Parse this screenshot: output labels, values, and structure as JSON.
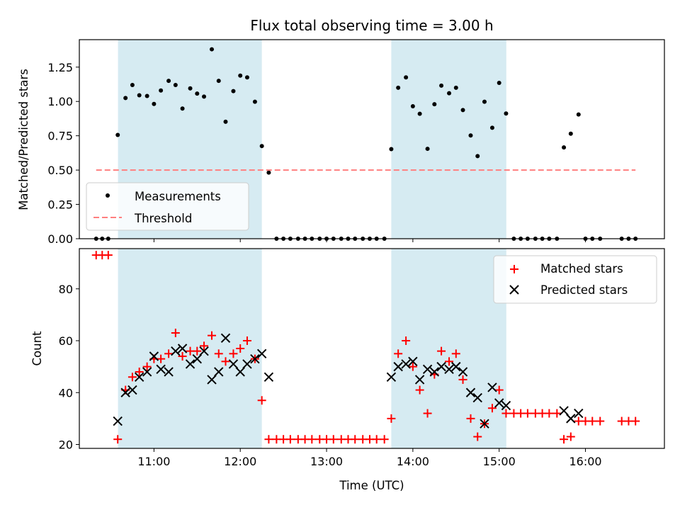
{
  "chart_data": [
    {
      "type": "scatter",
      "title": "Flux total observing time = 3.00 h",
      "xlabel": "",
      "ylabel": "Matched/Predicted stars",
      "xlim_hours": [
        10.135,
        16.915
      ],
      "ylim": [
        0,
        1.45
      ],
      "yticks": [
        "0.00",
        "0.25",
        "0.50",
        "0.75",
        "1.00",
        "1.25"
      ],
      "ytick_values": [
        0,
        0.25,
        0.5,
        0.75,
        1.0,
        1.25
      ],
      "xtick_hours": [
        11,
        12,
        13,
        14,
        15,
        16
      ],
      "shaded_intervals_hours": [
        [
          10.583,
          12.25
        ],
        [
          13.75,
          15.083
        ]
      ],
      "shade_color": "#add8e6",
      "legend_position": "lower-left",
      "series": [
        {
          "name": "Measurements",
          "marker": "dot",
          "color": "#000000",
          "points": [
            [
              10.33,
              0
            ],
            [
              10.4,
              0
            ],
            [
              10.47,
              0
            ],
            [
              10.58,
              0.756
            ],
            [
              10.67,
              1.025
            ],
            [
              10.75,
              1.12
            ],
            [
              10.83,
              1.045
            ],
            [
              10.92,
              1.04
            ],
            [
              11.0,
              0.982
            ],
            [
              11.08,
              1.08
            ],
            [
              11.17,
              1.15
            ],
            [
              11.25,
              1.12
            ],
            [
              11.33,
              0.948
            ],
            [
              11.42,
              1.095
            ],
            [
              11.5,
              1.057
            ],
            [
              11.58,
              1.035
            ],
            [
              11.67,
              1.38
            ],
            [
              11.75,
              1.15
            ],
            [
              11.83,
              0.852
            ],
            [
              11.92,
              1.075
            ],
            [
              12.0,
              1.188
            ],
            [
              12.08,
              1.175
            ],
            [
              12.17,
              0.998
            ],
            [
              12.25,
              0.675
            ],
            [
              12.33,
              0.482
            ],
            [
              12.42,
              0
            ],
            [
              12.5,
              0
            ],
            [
              12.58,
              0
            ],
            [
              12.67,
              0
            ],
            [
              12.75,
              0
            ],
            [
              12.83,
              0
            ],
            [
              12.92,
              0
            ],
            [
              13.0,
              0
            ],
            [
              13.08,
              0
            ],
            [
              13.17,
              0
            ],
            [
              13.25,
              0
            ],
            [
              13.33,
              0
            ],
            [
              13.42,
              0
            ],
            [
              13.5,
              0
            ],
            [
              13.58,
              0
            ],
            [
              13.67,
              0
            ],
            [
              13.75,
              0.653
            ],
            [
              13.83,
              1.1
            ],
            [
              13.92,
              1.175
            ],
            [
              14.0,
              0.965
            ],
            [
              14.08,
              0.91
            ],
            [
              14.17,
              0.655
            ],
            [
              14.25,
              0.98
            ],
            [
              14.33,
              1.115
            ],
            [
              14.42,
              1.06
            ],
            [
              14.5,
              1.1
            ],
            [
              14.58,
              0.937
            ],
            [
              14.67,
              0.752
            ],
            [
              14.75,
              0.602
            ],
            [
              14.83,
              0.998
            ],
            [
              14.92,
              0.808
            ],
            [
              15.0,
              1.135
            ],
            [
              15.08,
              0.912
            ],
            [
              15.17,
              0
            ],
            [
              15.25,
              0
            ],
            [
              15.33,
              0
            ],
            [
              15.42,
              0
            ],
            [
              15.5,
              0
            ],
            [
              15.58,
              0
            ],
            [
              15.67,
              0
            ],
            [
              15.75,
              0.665
            ],
            [
              15.83,
              0.765
            ],
            [
              15.92,
              0.905
            ],
            [
              16.0,
              0
            ],
            [
              16.08,
              0
            ],
            [
              16.17,
              0
            ],
            [
              16.42,
              0
            ],
            [
              16.5,
              0
            ],
            [
              16.58,
              0
            ]
          ]
        },
        {
          "name": "Threshold",
          "style": "dashed",
          "color": "#ff7f7f",
          "x_range_hours": [
            10.33,
            16.58
          ],
          "value": 0.5
        }
      ]
    },
    {
      "type": "scatter",
      "title": "",
      "xlabel": "Time (UTC)",
      "ylabel": "Count",
      "xlim_hours": [
        10.135,
        16.915
      ],
      "ylim": [
        18.5,
        95.5
      ],
      "yticks": [
        "20",
        "40",
        "60",
        "80"
      ],
      "ytick_values": [
        20,
        40,
        60,
        80
      ],
      "xticks": [
        "11:00",
        "12:00",
        "13:00",
        "14:00",
        "15:00",
        "16:00"
      ],
      "xtick_hours": [
        11,
        12,
        13,
        14,
        15,
        16
      ],
      "shaded_intervals_hours": [
        [
          10.583,
          12.25
        ],
        [
          13.75,
          15.083
        ]
      ],
      "shade_color": "#add8e6",
      "legend_position": "upper-right",
      "series": [
        {
          "name": "Matched stars",
          "marker": "plus",
          "color": "#ff0000",
          "points": [
            [
              10.33,
              93
            ],
            [
              10.4,
              93
            ],
            [
              10.47,
              93
            ],
            [
              10.58,
              22
            ],
            [
              10.67,
              41
            ],
            [
              10.75,
              46
            ],
            [
              10.83,
              48
            ],
            [
              10.92,
              50
            ],
            [
              11.0,
              53
            ],
            [
              11.08,
              53
            ],
            [
              11.17,
              55
            ],
            [
              11.25,
              63
            ],
            [
              11.33,
              54
            ],
            [
              11.42,
              56
            ],
            [
              11.5,
              56
            ],
            [
              11.58,
              58
            ],
            [
              11.67,
              62
            ],
            [
              11.75,
              55
            ],
            [
              11.83,
              52
            ],
            [
              11.92,
              55
            ],
            [
              12.0,
              57
            ],
            [
              12.08,
              60
            ],
            [
              12.17,
              53
            ],
            [
              12.25,
              37
            ],
            [
              12.33,
              22
            ],
            [
              12.42,
              22
            ],
            [
              12.5,
              22
            ],
            [
              12.58,
              22
            ],
            [
              12.67,
              22
            ],
            [
              12.75,
              22
            ],
            [
              12.83,
              22
            ],
            [
              12.92,
              22
            ],
            [
              13.0,
              22
            ],
            [
              13.08,
              22
            ],
            [
              13.17,
              22
            ],
            [
              13.25,
              22
            ],
            [
              13.33,
              22
            ],
            [
              13.42,
              22
            ],
            [
              13.5,
              22
            ],
            [
              13.58,
              22
            ],
            [
              13.67,
              22
            ],
            [
              13.75,
              30
            ],
            [
              13.83,
              55
            ],
            [
              13.92,
              60
            ],
            [
              14.0,
              50
            ],
            [
              14.08,
              41
            ],
            [
              14.17,
              32
            ],
            [
              14.25,
              47
            ],
            [
              14.33,
              56
            ],
            [
              14.42,
              52
            ],
            [
              14.5,
              55
            ],
            [
              14.58,
              45
            ],
            [
              14.67,
              30
            ],
            [
              14.75,
              23
            ],
            [
              14.83,
              28
            ],
            [
              14.92,
              34
            ],
            [
              15.0,
              41
            ],
            [
              15.08,
              32
            ],
            [
              15.17,
              32
            ],
            [
              15.25,
              32
            ],
            [
              15.33,
              32
            ],
            [
              15.42,
              32
            ],
            [
              15.5,
              32
            ],
            [
              15.58,
              32
            ],
            [
              15.67,
              32
            ],
            [
              15.75,
              22
            ],
            [
              15.83,
              23
            ],
            [
              15.92,
              29
            ],
            [
              16.0,
              29
            ],
            [
              16.08,
              29
            ],
            [
              16.17,
              29
            ],
            [
              16.42,
              29
            ],
            [
              16.5,
              29
            ],
            [
              16.58,
              29
            ]
          ]
        },
        {
          "name": "Predicted stars",
          "marker": "x",
          "color": "#000000",
          "points": [
            [
              10.58,
              29
            ],
            [
              10.67,
              40
            ],
            [
              10.75,
              41
            ],
            [
              10.83,
              46
            ],
            [
              10.92,
              48
            ],
            [
              11.0,
              54
            ],
            [
              11.08,
              49
            ],
            [
              11.17,
              48
            ],
            [
              11.25,
              56
            ],
            [
              11.33,
              57
            ],
            [
              11.42,
              51
            ],
            [
              11.5,
              53
            ],
            [
              11.58,
              56
            ],
            [
              11.67,
              45
            ],
            [
              11.75,
              48
            ],
            [
              11.83,
              61
            ],
            [
              11.92,
              51
            ],
            [
              12.0,
              48
            ],
            [
              12.08,
              51
            ],
            [
              12.17,
              53
            ],
            [
              12.25,
              55
            ],
            [
              12.33,
              46
            ],
            [
              13.75,
              46
            ],
            [
              13.83,
              50
            ],
            [
              13.92,
              51
            ],
            [
              14.0,
              52
            ],
            [
              14.08,
              45
            ],
            [
              14.17,
              49
            ],
            [
              14.25,
              48
            ],
            [
              14.33,
              50
            ],
            [
              14.42,
              49
            ],
            [
              14.5,
              50
            ],
            [
              14.58,
              48
            ],
            [
              14.67,
              40
            ],
            [
              14.75,
              38
            ],
            [
              14.83,
              28
            ],
            [
              14.92,
              42
            ],
            [
              15.0,
              36
            ],
            [
              15.08,
              35
            ],
            [
              15.75,
              33
            ],
            [
              15.83,
              30
            ],
            [
              15.92,
              32
            ]
          ]
        }
      ]
    }
  ]
}
